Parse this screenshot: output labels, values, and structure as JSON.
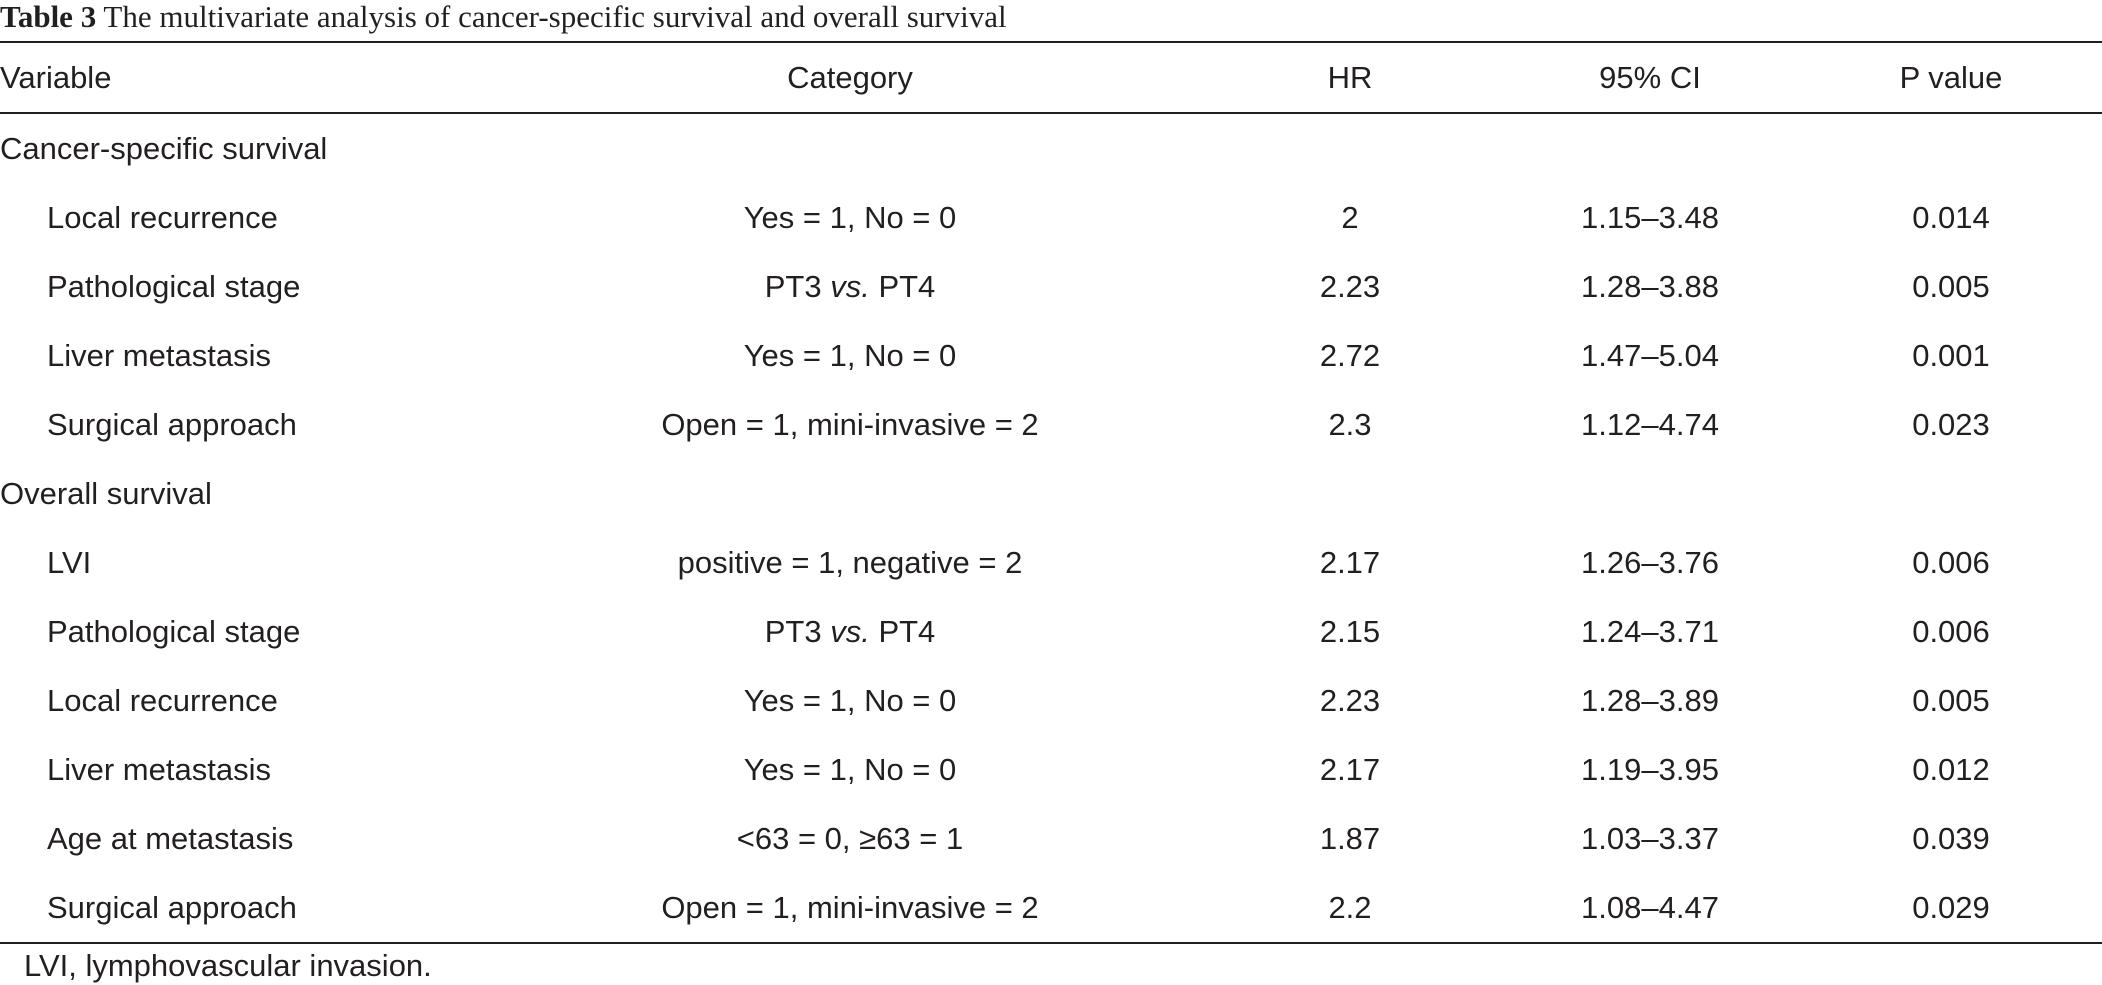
{
  "caption": {
    "label": "Table 3",
    "text": "The multivariate analysis of cancer-specific survival and overall survival"
  },
  "headers": {
    "variable": "Variable",
    "category": "Category",
    "hr": "HR",
    "ci": "95% CI",
    "p": "P value"
  },
  "sections": {
    "css": "Cancer-specific survival",
    "os": "Overall survival"
  },
  "rows": [
    {
      "variable": "Local recurrence",
      "category": "Yes = 1, No = 0",
      "hr": "2",
      "ci": "1.15–3.48",
      "p": "0.014"
    },
    {
      "variable": "Pathological stage",
      "cat_a": "PT3",
      "cat_vs": "vs.",
      "cat_b": "PT4",
      "hr": "2.23",
      "ci": "1.28–3.88",
      "p": "0.005"
    },
    {
      "variable": "Liver metastasis",
      "category": "Yes = 1, No = 0",
      "hr": "2.72",
      "ci": "1.47–5.04",
      "p": "0.001"
    },
    {
      "variable": "Surgical approach",
      "category": "Open = 1, mini-invasive = 2",
      "hr": "2.3",
      "ci": "1.12–4.74",
      "p": "0.023"
    },
    {
      "variable": "LVI",
      "category": "positive = 1, negative = 2",
      "hr": "2.17",
      "ci": "1.26–3.76",
      "p": "0.006"
    },
    {
      "variable": "Pathological stage",
      "cat_a": "PT3",
      "cat_vs": "vs.",
      "cat_b": "PT4",
      "hr": "2.15",
      "ci": "1.24–3.71",
      "p": "0.006"
    },
    {
      "variable": "Local recurrence",
      "category": "Yes = 1, No = 0",
      "hr": "2.23",
      "ci": "1.28–3.89",
      "p": "0.005"
    },
    {
      "variable": "Liver metastasis",
      "category": "Yes = 1, No = 0",
      "hr": "2.17",
      "ci": "1.19–3.95",
      "p": "0.012"
    },
    {
      "variable": "Age at metastasis",
      "category": "<63 = 0, ≥63 = 1",
      "hr": "1.87",
      "ci": "1.03–3.37",
      "p": "0.039"
    },
    {
      "variable": "Surgical approach",
      "category": "Open = 1, mini-invasive = 2",
      "hr": "2.2",
      "ci": "1.08–4.47",
      "p": "0.029"
    }
  ],
  "footnote": "LVI, lymphovascular invasion."
}
